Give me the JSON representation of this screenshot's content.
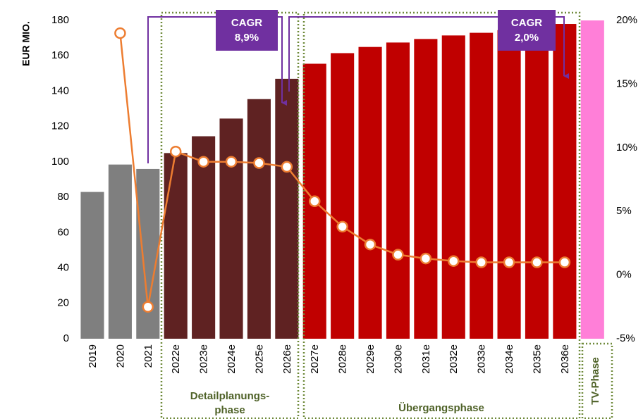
{
  "chart_data": {
    "type": "bar",
    "y_label": "EUR MIO.",
    "categories": [
      "2019",
      "2020",
      "2021",
      "2022e",
      "2023e",
      "2024e",
      "2025e",
      "2026e",
      "2027e",
      "2028e",
      "2029e",
      "2030e",
      "2031e",
      "2032e",
      "2033e",
      "2034e",
      "2035e",
      "2036e",
      null
    ],
    "series": [
      {
        "type": "bar",
        "values": [
          83,
          98.5,
          96,
          105,
          114.5,
          124.5,
          135.5,
          147,
          155.5,
          161.5,
          165,
          167.5,
          169.5,
          171.5,
          173,
          174.5,
          176,
          178,
          180
        ],
        "colors": [
          "#7f7f7f",
          "#7f7f7f",
          "#7f7f7f",
          "#5f2222",
          "#5f2222",
          "#5f2222",
          "#5f2222",
          "#5f2222",
          "#c00000",
          "#c00000",
          "#c00000",
          "#c00000",
          "#c00000",
          "#c00000",
          "#c00000",
          "#c00000",
          "#c00000",
          "#c00000",
          "#ff7fd8"
        ]
      },
      {
        "type": "line",
        "axis": "y2",
        "color": "#ed7d31",
        "values": [
          null,
          19.0,
          -2.5,
          9.7,
          8.9,
          8.9,
          8.8,
          8.5,
          5.8,
          3.8,
          2.4,
          1.6,
          1.3,
          1.1,
          1.0,
          1.0,
          1.0,
          1.0,
          null
        ]
      }
    ],
    "ylim": [
      0,
      180
    ],
    "yticks": [
      0,
      20,
      40,
      60,
      80,
      100,
      120,
      140,
      160,
      180
    ],
    "y2lim": [
      -5,
      20
    ],
    "y2ticks": [
      {
        "value": -5,
        "label": "-5%"
      },
      {
        "value": 0,
        "label": "0%"
      },
      {
        "value": 5,
        "label": "5%"
      },
      {
        "value": 10,
        "label": "10%"
      },
      {
        "value": 15,
        "label": "15%"
      },
      {
        "value": 20,
        "label": "20%"
      }
    ],
    "cagr": [
      {
        "label": "CAGR",
        "rate": "8,9%"
      },
      {
        "label": "CAGR",
        "rate": "2,0%"
      }
    ],
    "phases": [
      {
        "lines": [
          "Detailplanungs-",
          "phase"
        ]
      },
      {
        "lines": [
          "Übergangsphase"
        ]
      },
      {
        "lines": [
          "TV-Phase"
        ]
      }
    ]
  }
}
